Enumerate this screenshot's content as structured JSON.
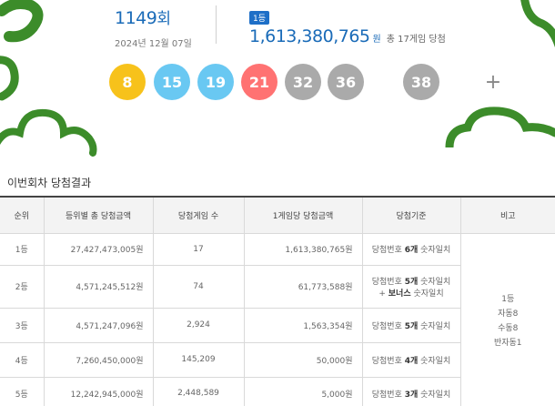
{
  "round": {
    "number": "1149",
    "suffix": "회",
    "date": "2024년 12월 07일"
  },
  "first_prize": {
    "rank_badge": "1등",
    "amount": "1,613,380,765",
    "unit": "원",
    "winners_text": "총 17게임 당첨"
  },
  "balls": [
    {
      "number": "8",
      "color": "#f7c21b"
    },
    {
      "number": "15",
      "color": "#69c8f2"
    },
    {
      "number": "19",
      "color": "#69c8f2"
    },
    {
      "number": "21",
      "color": "#ff7272"
    },
    {
      "number": "32",
      "color": "#aaaaaa"
    },
    {
      "number": "36",
      "color": "#aaaaaa"
    }
  ],
  "plus_symbol": "+",
  "bonus_ball": {
    "number": "38",
    "color": "#aaaaaa"
  },
  "decor_color": "#3c8c2a",
  "section_title": "이번회차 당첨결과",
  "table": {
    "headers": [
      "순위",
      "등위별 총 당첨금액",
      "당첨게임 수",
      "1게임당 당첨금액",
      "당첨기준",
      "비고"
    ],
    "rows": [
      {
        "rank": "1등",
        "total": "27,427,473,005원",
        "games": "17",
        "per_game": "1,613,380,765원",
        "criteria": [
          {
            "pre": "당첨번호 ",
            "bold": "6개",
            "post": " 숫자일치"
          }
        ]
      },
      {
        "rank": "2등",
        "total": "4,571,245,512원",
        "games": "74",
        "per_game": "61,773,588원",
        "criteria": [
          {
            "pre": "당첨번호 ",
            "bold": "5개",
            "post": " 숫자일치"
          },
          {
            "pre": "+ ",
            "bold": "보너스",
            "post": " 숫자일치"
          }
        ]
      },
      {
        "rank": "3등",
        "total": "4,571,247,096원",
        "games": "2,924",
        "per_game": "1,563,354원",
        "criteria": [
          {
            "pre": "당첨번호 ",
            "bold": "5개",
            "post": " 숫자일치"
          }
        ]
      },
      {
        "rank": "4등",
        "total": "7,260,450,000원",
        "games": "145,209",
        "per_game": "50,000원",
        "criteria": [
          {
            "pre": "당첨번호 ",
            "bold": "4개",
            "post": " 숫자일치"
          }
        ]
      },
      {
        "rank": "5등",
        "total": "12,242,945,000원",
        "games": "2,448,589",
        "per_game": "5,000원",
        "criteria": [
          {
            "pre": "당첨번호 ",
            "bold": "3개",
            "post": " 숫자일치"
          }
        ]
      }
    ],
    "note_lines": [
      "1등",
      "자동8",
      "수동8",
      "반자동1"
    ]
  }
}
